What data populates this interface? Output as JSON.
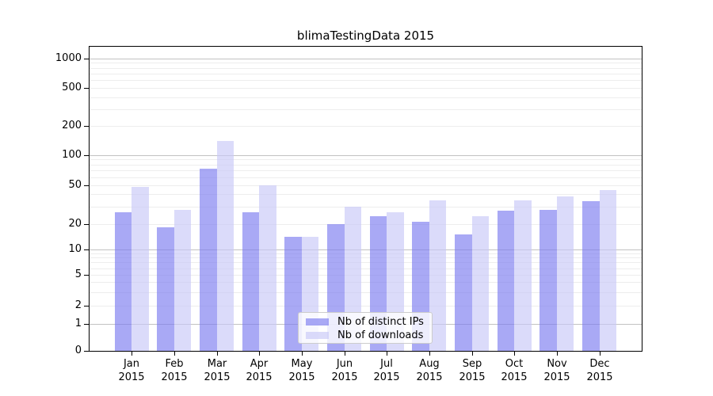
{
  "chart_data": {
    "type": "bar",
    "title": "blimaTestingData 2015",
    "scale": "symlog",
    "categories": [
      "Jan",
      "Feb",
      "Mar",
      "Apr",
      "May",
      "Jun",
      "Jul",
      "Aug",
      "Sep",
      "Oct",
      "Nov",
      "Dec"
    ],
    "year": "2015",
    "series": [
      {
        "name": "Nb of distinct IPs",
        "color": "rgba(125,125,240,0.66)",
        "values": [
          26,
          18,
          73,
          26,
          14,
          20,
          24,
          21,
          15,
          27,
          28,
          34
        ]
      },
      {
        "name": "Nb of downloads",
        "color": "rgba(201,201,247,0.66)",
        "values": [
          48,
          28,
          140,
          50,
          14,
          30,
          26,
          35,
          24,
          35,
          38,
          44
        ]
      }
    ],
    "y_ticks": [
      0,
      1,
      2,
      5,
      10,
      20,
      50,
      100,
      200,
      500,
      1000
    ],
    "ylim": [
      0,
      1300
    ],
    "xlabel": "",
    "ylabel": "",
    "grid": true,
    "legend_position": "lower center",
    "colors": {
      "major_grid": "#c2c2c2",
      "minor_grid": "#ededed",
      "spine": "#000000",
      "text": "#000000",
      "background": "#ffffff"
    }
  }
}
